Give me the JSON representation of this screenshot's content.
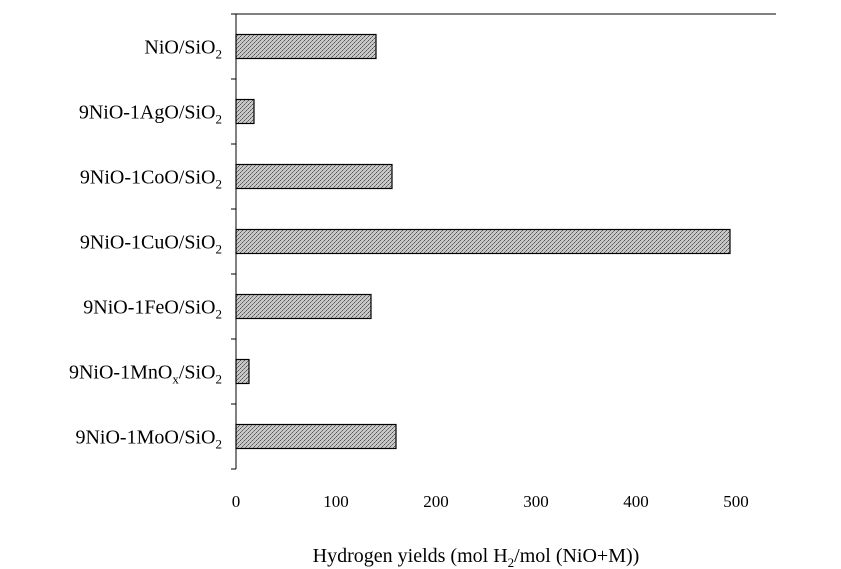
{
  "chart_data": {
    "type": "bar",
    "orientation": "horizontal",
    "categories": [
      {
        "base": "NiO/SiO",
        "sub": "2",
        "mid": "",
        "mid_sub": ""
      },
      {
        "base": "9NiO-1AgO/SiO",
        "sub": "2",
        "mid": "",
        "mid_sub": ""
      },
      {
        "base": "9NiO-1CoO/SiO",
        "sub": "2",
        "mid": "",
        "mid_sub": ""
      },
      {
        "base": "9NiO-1CuO/SiO",
        "sub": "2",
        "mid": "",
        "mid_sub": ""
      },
      {
        "base": "9NiO-1FeO/SiO",
        "sub": "2",
        "mid": "",
        "mid_sub": ""
      },
      {
        "base": "9NiO-1MnO",
        "mid_sub": "x",
        "mid": "/SiO",
        "sub": "2"
      },
      {
        "base": "9NiO-1MoO/SiO",
        "sub": "2",
        "mid": "",
        "mid_sub": ""
      }
    ],
    "values": [
      140,
      18,
      156,
      494,
      135,
      13,
      160
    ],
    "xlim": [
      0,
      540
    ],
    "xticks": [
      0,
      100,
      200,
      300,
      400,
      500
    ],
    "xlabel": {
      "pre": "Hydrogen yields (mol H",
      "sub": "2",
      "post": "/mol (NiO+M))"
    },
    "grid": false,
    "legend": "none",
    "bar_fill": "#9a9a9a",
    "bar_stroke": "#000000"
  }
}
